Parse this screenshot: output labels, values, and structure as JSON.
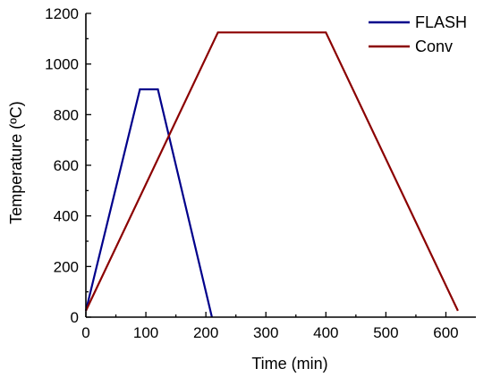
{
  "chart_data": {
    "type": "line",
    "title": "",
    "xlabel": "Time (min)",
    "ylabel": "Temperature (ºC)",
    "xlim": [
      0,
      650
    ],
    "ylim": [
      0,
      1200
    ],
    "xticks": [
      0,
      100,
      200,
      300,
      400,
      500,
      600
    ],
    "yticks": [
      0,
      200,
      400,
      600,
      800,
      1000,
      1200
    ],
    "grid": false,
    "legend_position": "top-right",
    "series": [
      {
        "name": "FLASH",
        "color": "#00008b",
        "x": [
          0,
          90,
          120,
          210
        ],
        "y": [
          25,
          900,
          900,
          0
        ]
      },
      {
        "name": "Conv",
        "color": "#8b0000",
        "x": [
          0,
          220,
          400,
          620
        ],
        "y": [
          25,
          1125,
          1125,
          25
        ]
      }
    ]
  }
}
